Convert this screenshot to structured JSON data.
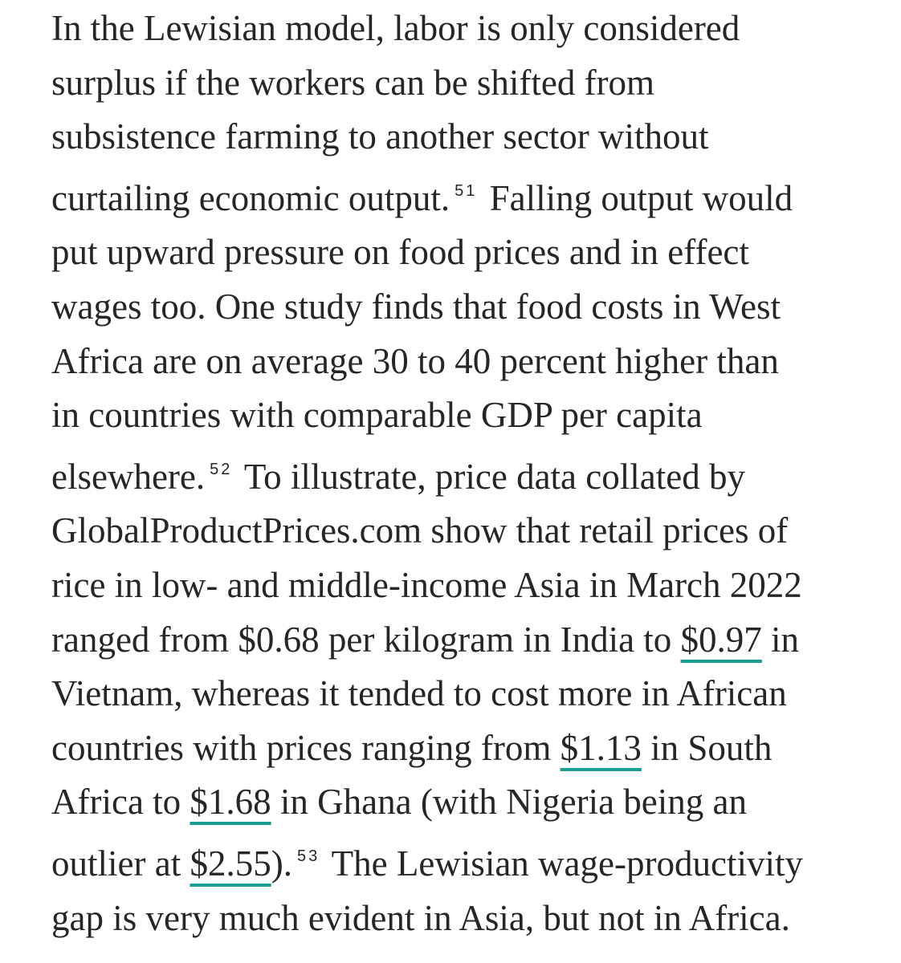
{
  "document": {
    "accent_color": "#1a9e94",
    "lines": [
      [
        {
          "t": "In the Lewisian model, labor is only considered"
        }
      ],
      [
        {
          "t": "surplus if the workers can be shifted from"
        }
      ],
      [
        {
          "t": "subsistence farming to another sector without"
        }
      ],
      [
        {
          "t": "curtailing economic output."
        },
        {
          "t": "51",
          "sup": true
        },
        {
          "t": " Falling output would"
        }
      ],
      [
        {
          "t": "put upward pressure on food prices and in effect"
        }
      ],
      [
        {
          "t": "wages too. One study finds that food costs in West"
        }
      ],
      [
        {
          "t": "Africa are on average 30 to 40 percent higher than"
        }
      ],
      [
        {
          "t": "in countries with comparable GDP per capita"
        }
      ],
      [
        {
          "t": "elsewhere."
        },
        {
          "t": "52",
          "sup": true
        },
        {
          "t": " To illustrate, price data collated by"
        }
      ],
      [
        {
          "t": "GlobalProductPrices.com show that retail prices of"
        }
      ],
      [
        {
          "t": "rice in low- and middle-income Asia in March 2022"
        }
      ],
      [
        {
          "t": "ranged from $0.68 per kilogram in India to "
        },
        {
          "t": "$0.97",
          "link": true
        },
        {
          "t": " in"
        }
      ],
      [
        {
          "t": "Vietnam, whereas it tended to cost more in African"
        }
      ],
      [
        {
          "t": "countries with prices ranging from "
        },
        {
          "t": "$1.13",
          "link": true
        },
        {
          "t": " in South"
        }
      ],
      [
        {
          "t": "Africa to "
        },
        {
          "t": "$1.68",
          "link": true
        },
        {
          "t": " in Ghana (with Nigeria being an"
        }
      ],
      [
        {
          "t": "outlier at "
        },
        {
          "t": "$2.55",
          "link": true
        },
        {
          "t": ")."
        },
        {
          "t": "53",
          "sup": true
        },
        {
          "t": " The Lewisian wage-productivity"
        }
      ],
      [
        {
          "t": "gap is very much evident in Asia, but not in Africa."
        }
      ]
    ]
  }
}
